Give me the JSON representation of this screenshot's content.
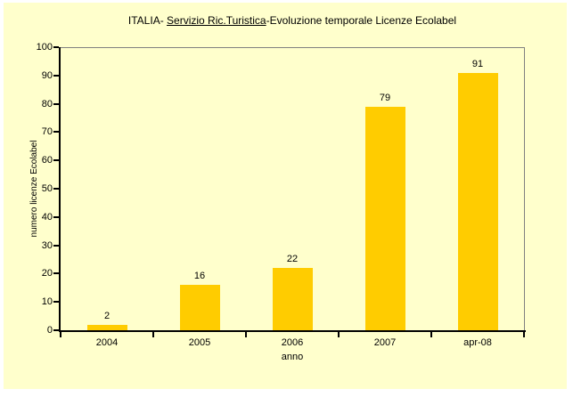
{
  "page": {
    "background_color": "#FFFFFF",
    "chart_background_color": "#FFFFCC"
  },
  "chart_data": {
    "type": "bar",
    "title": "ITALIA- Servizio Ric.Turistica-Evoluzione temporale Licenze Ecolabel",
    "title_parts": {
      "prefix": "ITALIA- ",
      "underlined": "Servizio Ric.Turistica",
      "suffix": "-Evoluzione temporale Licenze Ecolabel"
    },
    "categories": [
      "2004",
      "2005",
      "2006",
      "2007",
      "apr-08"
    ],
    "values": [
      2,
      16,
      22,
      79,
      91
    ],
    "data_labels": [
      "2",
      "16",
      "22",
      "79",
      "91"
    ],
    "xlabel": "anno",
    "ylabel": "numero licenze Ecolabel",
    "ylim": [
      0,
      100
    ],
    "yticks": [
      0,
      10,
      20,
      30,
      40,
      50,
      60,
      70,
      80,
      90,
      100
    ],
    "bar_color": "#FFCC00",
    "axis_color": "#000000",
    "plot_border_color": "#808080",
    "grid": false,
    "legend": "none"
  }
}
